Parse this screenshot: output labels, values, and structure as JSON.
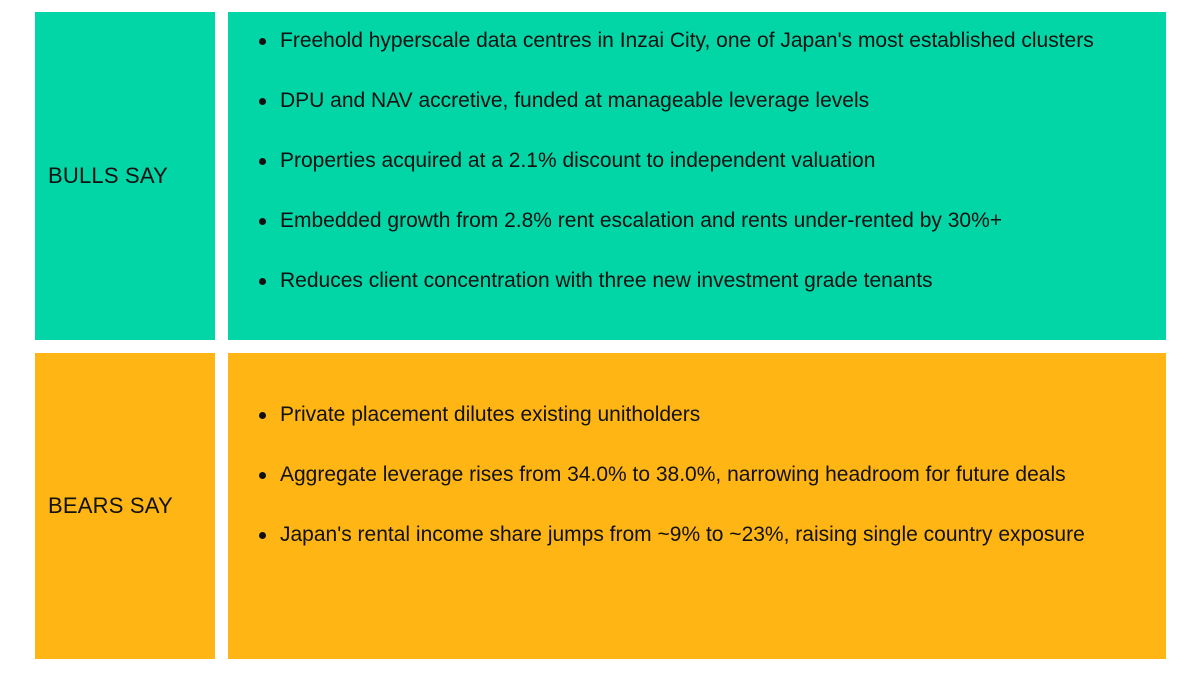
{
  "bulls": {
    "label": "BULLS SAY",
    "points": [
      "Freehold hyperscale data centres in Inzai City, one of Japan's most established clusters",
      "DPU and NAV accretive, funded at manageable leverage levels",
      "Properties acquired at a 2.1% discount to independent valuation",
      "Embedded growth from 2.8% rent escalation and rents under-rented by 30%+",
      "Reduces client concentration with three new investment grade tenants"
    ]
  },
  "bears": {
    "label": "BEARS SAY",
    "points": [
      "Private placement dilutes existing unitholders",
      "Aggregate leverage rises from 34.0% to 38.0%, narrowing headroom for future deals",
      "Japan's rental income share jumps from ~9% to ~23%, raising single country exposure"
    ]
  },
  "colors": {
    "bulls_background": "#02d6a6",
    "bears_background": "#ffb514"
  }
}
